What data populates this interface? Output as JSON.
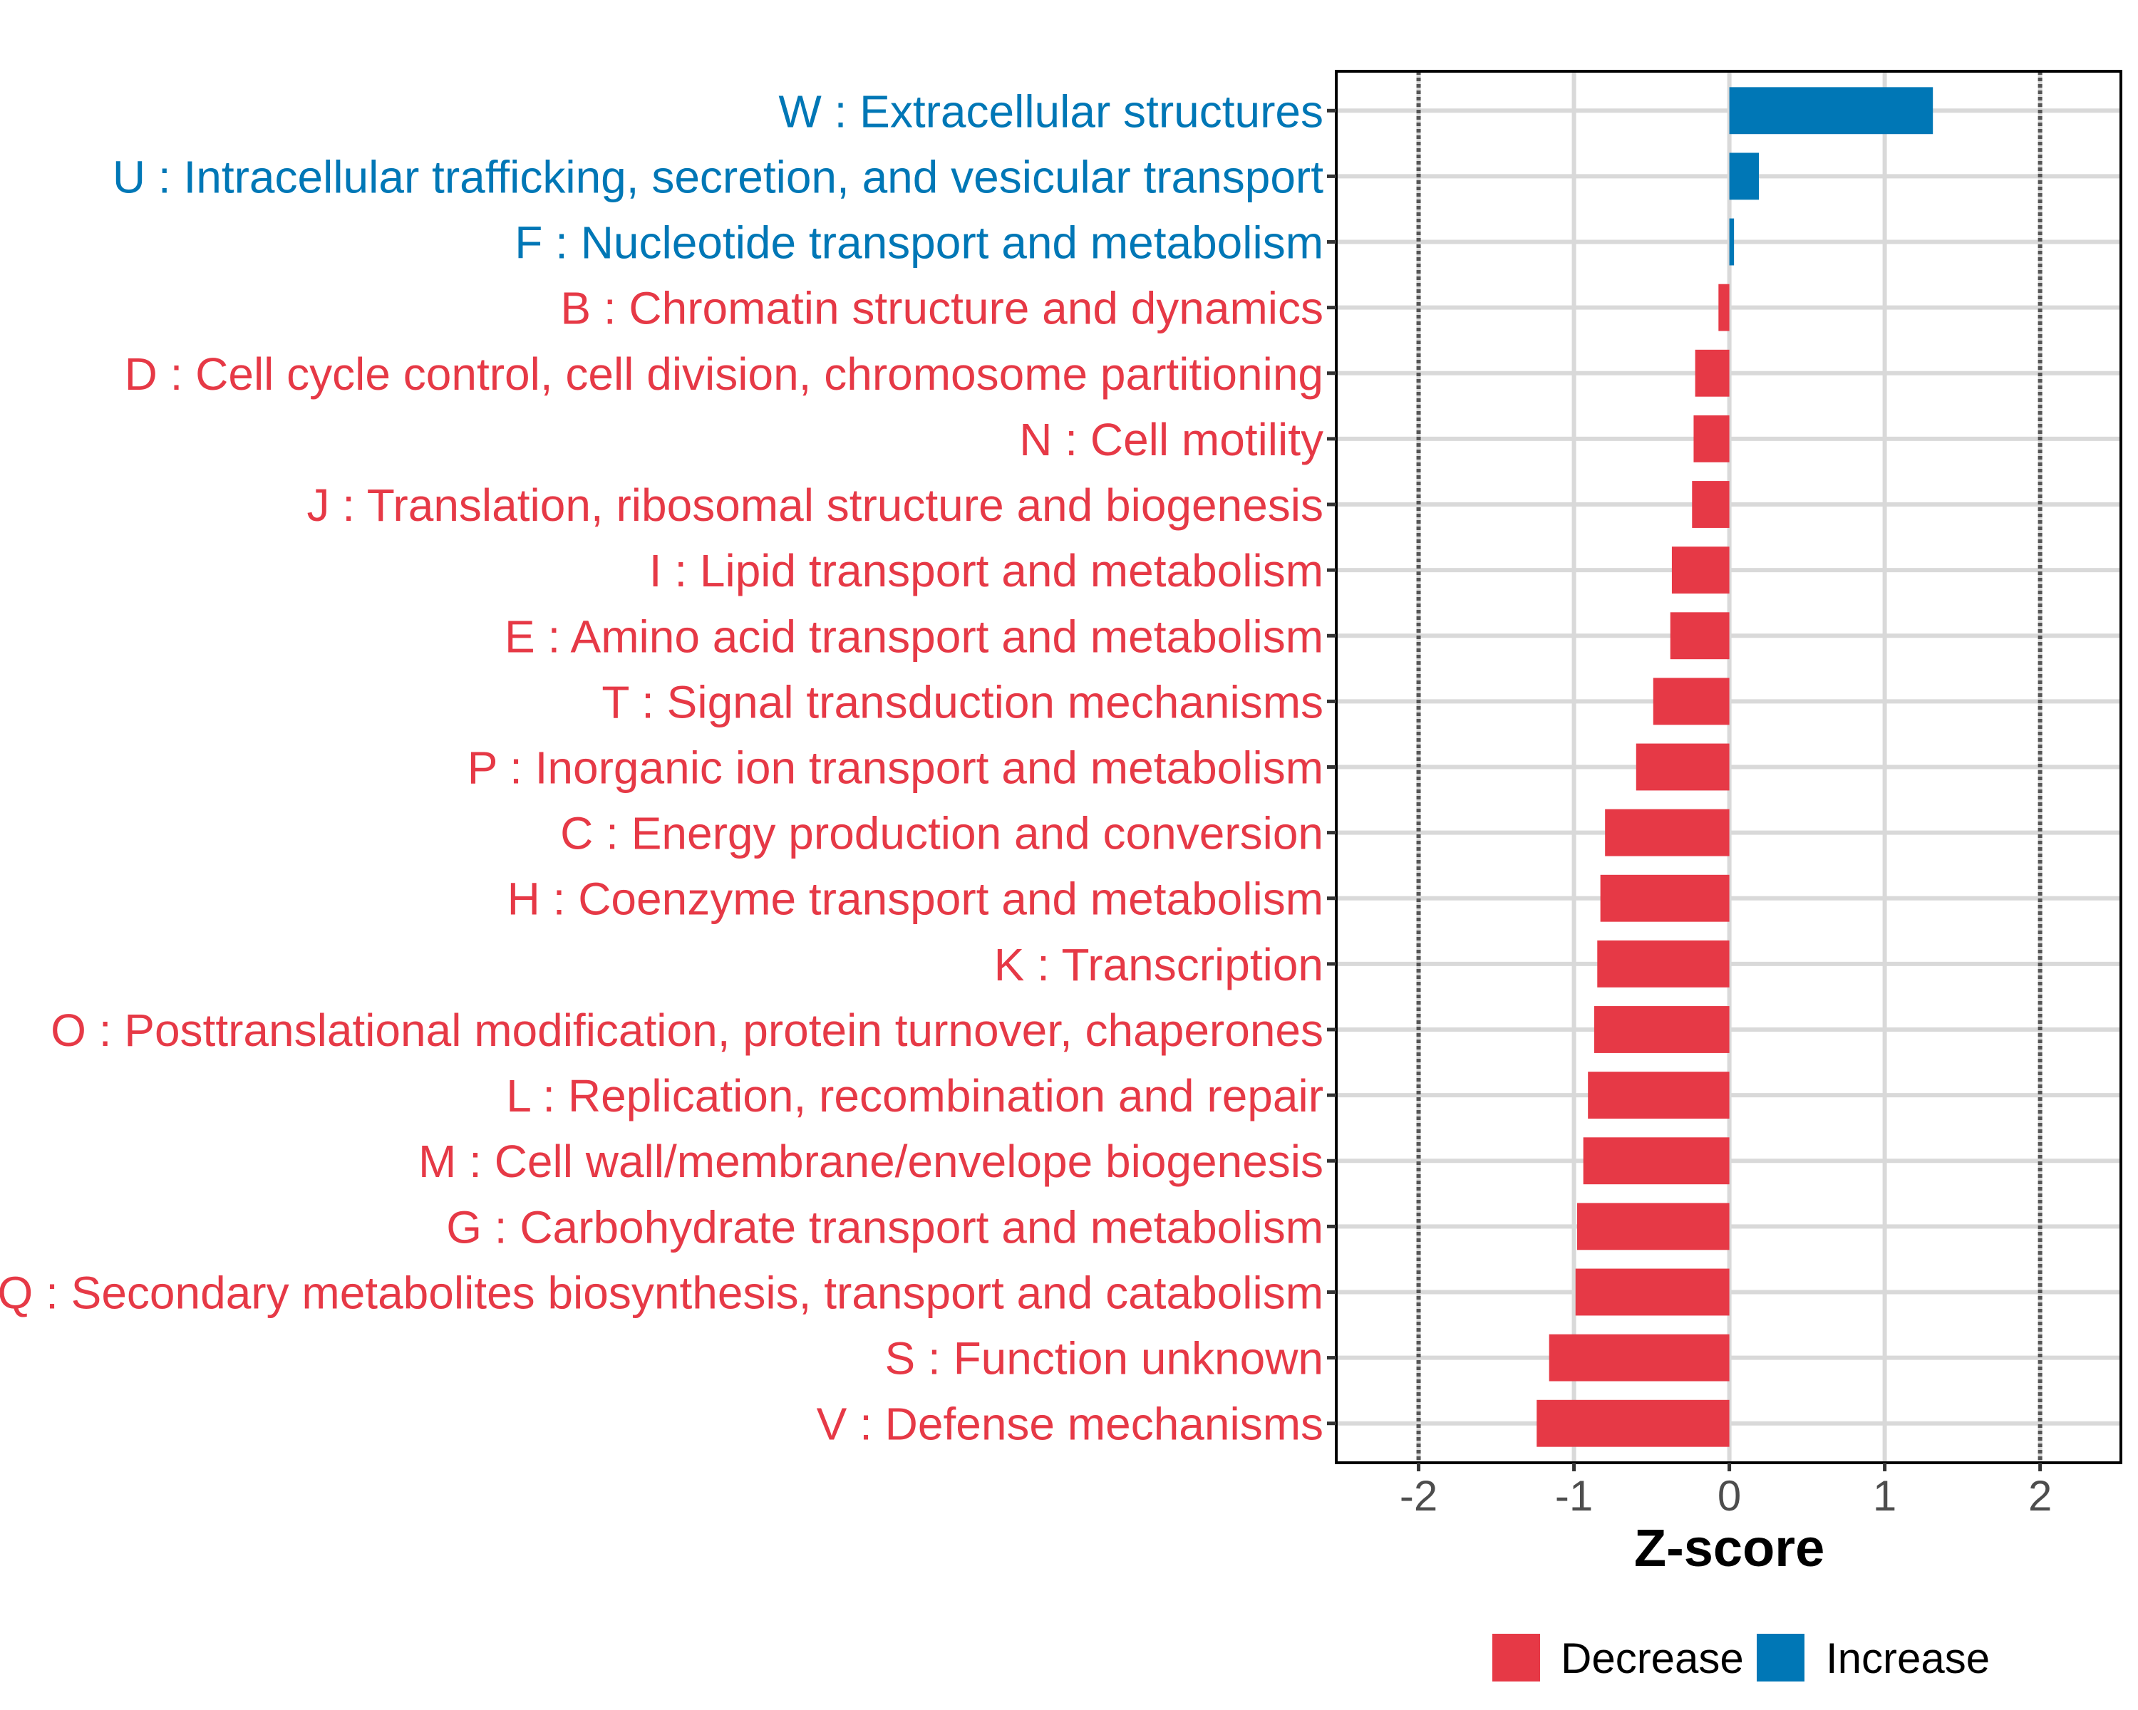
{
  "chart_data": {
    "type": "bar",
    "orientation": "horizontal",
    "title": "",
    "xlabel": "Z-score",
    "ylabel": "",
    "xlim": [
      -2.53,
      2.52
    ],
    "xticks": [
      -2,
      -1,
      0,
      1,
      2
    ],
    "xtick_labels": [
      "-2",
      "-1",
      "0",
      "1",
      "2"
    ],
    "grid": true,
    "reference_lines": [
      -2,
      2
    ],
    "reference_line_style": "dotted",
    "categories": [
      "W : Extracellular structures",
      "U : Intracellular trafficking, secretion, and vesicular transport",
      "F : Nucleotide transport and metabolism",
      "B : Chromatin structure and dynamics",
      "D : Cell cycle control, cell division, chromosome partitioning",
      "N : Cell motility",
      "J : Translation, ribosomal structure and biogenesis",
      "I : Lipid transport and metabolism",
      "E : Amino acid transport and metabolism",
      "T : Signal transduction mechanisms",
      "P : Inorganic ion transport and metabolism",
      "C : Energy production and conversion",
      "H : Coenzyme transport and metabolism",
      "K : Transcription",
      "O : Posttranslational modification, protein turnover, chaperones",
      "L : Replication, recombination and repair",
      "M : Cell wall/membrane/envelope biogenesis",
      "G : Carbohydrate transport and metabolism",
      "Q : Secondary metabolites biosynthesis, transport and catabolism",
      "S : Function unknown",
      "V : Defense mechanisms"
    ],
    "values": [
      1.31,
      0.19,
      0.03,
      -0.07,
      -0.22,
      -0.23,
      -0.24,
      -0.37,
      -0.38,
      -0.49,
      -0.6,
      -0.8,
      -0.83,
      -0.85,
      -0.87,
      -0.91,
      -0.94,
      -0.98,
      -0.99,
      -1.16,
      -1.24
    ],
    "groups": [
      "Increase",
      "Increase",
      "Increase",
      "Decrease",
      "Decrease",
      "Decrease",
      "Decrease",
      "Decrease",
      "Decrease",
      "Decrease",
      "Decrease",
      "Decrease",
      "Decrease",
      "Decrease",
      "Decrease",
      "Decrease",
      "Decrease",
      "Decrease",
      "Decrease",
      "Decrease",
      "Decrease"
    ],
    "legend": {
      "position": "bottom",
      "entries": [
        {
          "label": "Decrease",
          "color": "#e63946"
        },
        {
          "label": "Increase",
          "color": "#0077b6"
        }
      ]
    },
    "colors": {
      "Decrease": "#e63946",
      "Increase": "#0077b6"
    }
  }
}
